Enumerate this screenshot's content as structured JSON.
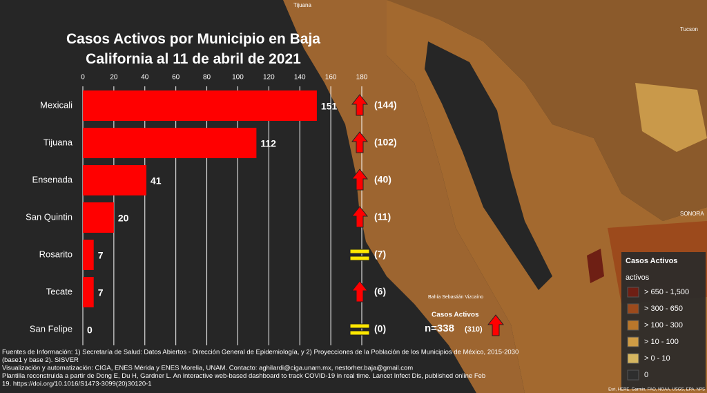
{
  "chart_data": {
    "type": "bar",
    "orientation": "horizontal",
    "title": "Casos Activos por Municipio en Baja California al 11 de abril de 2021",
    "categories": [
      "Mexicali",
      "Tijuana",
      "Ensenada",
      "San Quintin",
      "Rosarito",
      "Tecate",
      "San Felipe"
    ],
    "values": [
      151,
      112,
      41,
      20,
      7,
      7,
      0
    ],
    "color": "#ff0000",
    "previous_values": [
      144,
      102,
      40,
      11,
      7,
      6,
      0
    ],
    "previous_value_labels": [
      "(144)",
      "(102)",
      "(40)",
      "(11)",
      "(7)",
      "(6)",
      "(0)"
    ],
    "trends": [
      "up",
      "up",
      "up",
      "up",
      "equal",
      "up",
      "equal"
    ],
    "xlim": [
      0,
      180
    ],
    "xticks": [
      0,
      20,
      40,
      60,
      80,
      100,
      120,
      140,
      160,
      180
    ],
    "grid": true,
    "summary": {
      "title": "Casos Activos",
      "text": "n=338",
      "previous": "(310)",
      "trend": "up"
    }
  },
  "map_legend": {
    "title": "Casos Activos",
    "subtitle": "activos",
    "items": [
      {
        "label": "> 650 - 1,500",
        "color": "#6e1f14"
      },
      {
        "label": "> 300 - 650",
        "color": "#9c4a1c"
      },
      {
        "label": "> 100 - 300",
        "color": "#b9772b"
      },
      {
        "label": "> 10 - 100",
        "color": "#cf9c45"
      },
      {
        "label": "> 0 - 10",
        "color": "#d6b660"
      },
      {
        "label": "0",
        "color": "#2e2e2e"
      }
    ]
  },
  "map_labels": [
    "Tijuana",
    "Tucson",
    "SONORA",
    "Bahía Sebastián Vizcaíno"
  ],
  "attribution": "Esri, HERE, Garmin, FAO, NOAA, USGS, EPA, NPS",
  "footer": [
    "Fuentes de Información: 1) Secretaría de Salud: Datos Abiertos - Dirección General de Epidemiología, y 2) Proyecciones de la Población de los Municipios de México, 2015-2030",
    "(base1 y base 2). SISVER",
    "Visualización y automatización: CIGA, ENES Mérida y ENES Morelia, UNAM. Contacto: aghilardi@ciga.unam.mx, nestorher.baja@gmail.com",
    "Plantilla reconstruida a partir de Dong E, Du H, Gardner L. An interactive web-based dashboard to track COVID-19 in real time. Lancet Infect Dis, published online Feb",
    "19. https://doi.org/10.1016/S1473-3099(20)30120-1"
  ]
}
